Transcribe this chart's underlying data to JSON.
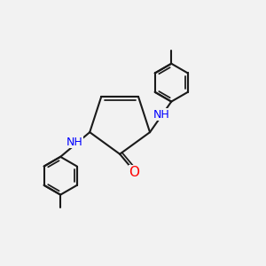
{
  "background_color": "#f2f2f2",
  "bond_color": "#1a1a1a",
  "N_color": "#0000ff",
  "O_color": "#ff0000",
  "C_color": "#1a1a1a",
  "bond_width": 1.5,
  "figsize": [
    3.0,
    3.0
  ],
  "dpi": 100,
  "xlim": [
    0,
    10
  ],
  "ylim": [
    0,
    10
  ]
}
